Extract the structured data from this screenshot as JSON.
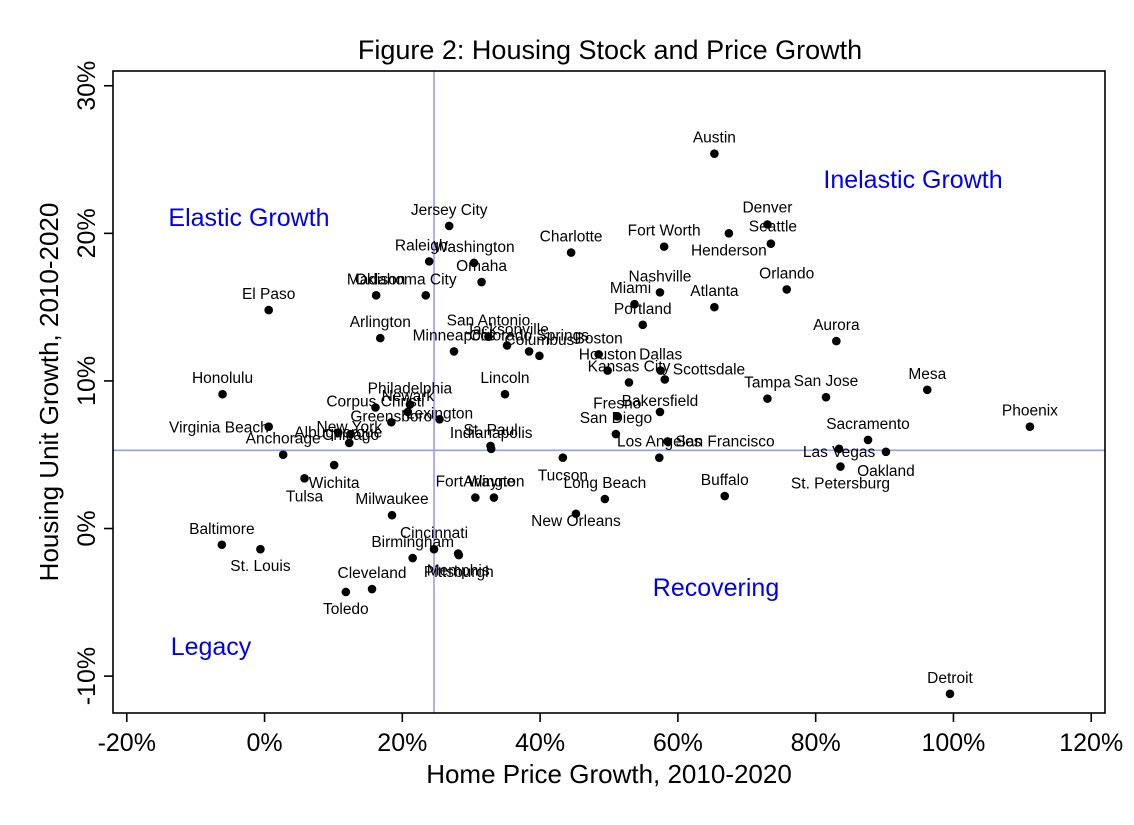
{
  "chart_data": {
    "type": "scatter",
    "title": "Figure 2: Housing Stock and Price Growth",
    "xlabel": "Home Price Growth, 2010-2020",
    "ylabel": "Housing Unit Growth, 2010-2020",
    "xlim": [
      -22,
      122
    ],
    "ylim": [
      -12.5,
      31
    ],
    "x_ticks": [
      -20,
      0,
      20,
      40,
      60,
      80,
      100,
      120
    ],
    "x_tick_labels": [
      "-20%",
      "0%",
      "20%",
      "40%",
      "60%",
      "80%",
      "100%",
      "120%"
    ],
    "y_ticks": [
      -10,
      0,
      10,
      20,
      30
    ],
    "y_tick_labels": [
      "-10%",
      "0%",
      "10%",
      "20%",
      "30%"
    ],
    "reference_lines": {
      "x": 24.6,
      "y": 5.3,
      "color": "#9999ff"
    },
    "quadrant_labels": [
      "Elastic Growth",
      "Inelastic Growth",
      "Legacy",
      "Recovering"
    ],
    "colors": {
      "point": "#000000",
      "quadrant_label": "#0000ee",
      "reference": "#9999ff"
    },
    "points": [
      {
        "name": "Austin",
        "x": 65.3,
        "y": 25.4
      },
      {
        "name": "Denver",
        "x": 73.0,
        "y": 20.6
      },
      {
        "name": "Seattle",
        "x": 73.5,
        "y": 19.3
      },
      {
        "name": "Henderson",
        "x": 67.4,
        "y": 20.0
      },
      {
        "name": "Fort Worth",
        "x": 58.0,
        "y": 19.1
      },
      {
        "name": "Charlotte",
        "x": 44.5,
        "y": 18.7
      },
      {
        "name": "Jersey City",
        "x": 26.8,
        "y": 20.5
      },
      {
        "name": "Washington",
        "x": 30.4,
        "y": 18.0
      },
      {
        "name": "Raleigh",
        "x": 23.9,
        "y": 18.1
      },
      {
        "name": "Omaha",
        "x": 31.5,
        "y": 16.7
      },
      {
        "name": "Oklahoma City",
        "x": 23.4,
        "y": 15.8
      },
      {
        "name": "El Paso",
        "x": 0.6,
        "y": 14.8
      },
      {
        "name": "Orlando",
        "x": 75.8,
        "y": 16.2
      },
      {
        "name": "Nashville",
        "x": 57.4,
        "y": 16.0
      },
      {
        "name": "Miami",
        "x": 53.7,
        "y": 15.2
      },
      {
        "name": "Atlanta",
        "x": 65.3,
        "y": 15.0
      },
      {
        "name": "Portland",
        "x": 54.9,
        "y": 13.8
      },
      {
        "name": "Aurora",
        "x": 83.0,
        "y": 12.7
      },
      {
        "name": "Madison",
        "x": 16.2,
        "y": 15.8
      },
      {
        "name": "Arlington",
        "x": 16.8,
        "y": 12.9
      },
      {
        "name": "San Antonio",
        "x": 32.5,
        "y": 13.0
      },
      {
        "name": "Jacksonville",
        "x": 35.2,
        "y": 12.4
      },
      {
        "name": "Colorado Springs",
        "x": 38.4,
        "y": 12.0
      },
      {
        "name": "Columbus",
        "x": 39.9,
        "y": 11.7
      },
      {
        "name": "Minneapolis",
        "x": 27.5,
        "y": 12.0
      },
      {
        "name": "Boston",
        "x": 48.5,
        "y": 11.8
      },
      {
        "name": "Dallas",
        "x": 57.5,
        "y": 10.7
      },
      {
        "name": "Lincoln",
        "x": 34.9,
        "y": 9.1
      },
      {
        "name": "Houston",
        "x": 49.8,
        "y": 10.7
      },
      {
        "name": "Kansas City",
        "x": 52.9,
        "y": 9.9
      },
      {
        "name": "Scottsdale",
        "x": 58.1,
        "y": 10.1
      },
      {
        "name": "Honolulu",
        "x": -6.1,
        "y": 9.1
      },
      {
        "name": "Tampa",
        "x": 73.0,
        "y": 8.8
      },
      {
        "name": "San Jose",
        "x": 81.5,
        "y": 8.9
      },
      {
        "name": "Mesa",
        "x": 96.2,
        "y": 9.4
      },
      {
        "name": "Phoenix",
        "x": 111.1,
        "y": 6.9
      },
      {
        "name": "Philadelphia",
        "x": 21.1,
        "y": 8.4
      },
      {
        "name": "Newark",
        "x": 20.8,
        "y": 7.9
      },
      {
        "name": "Corpus Christi",
        "x": 16.1,
        "y": 8.2
      },
      {
        "name": "Lexington",
        "x": 25.4,
        "y": 7.4
      },
      {
        "name": "Bakersfield",
        "x": 57.4,
        "y": 7.9
      },
      {
        "name": "Fresno",
        "x": 51.2,
        "y": 7.6
      },
      {
        "name": "San Francisco",
        "x": 58.5,
        "y": 5.9
      },
      {
        "name": "San Diego",
        "x": 51.0,
        "y": 6.4
      },
      {
        "name": "Greensboro",
        "x": 18.4,
        "y": 7.2
      },
      {
        "name": "Virginia Beach",
        "x": 0.6,
        "y": 6.9
      },
      {
        "name": "Albuquerque",
        "x": 10.7,
        "y": 6.5
      },
      {
        "name": "Chicago",
        "x": 12.5,
        "y": 6.4
      },
      {
        "name": "New York",
        "x": 12.3,
        "y": 5.8
      },
      {
        "name": "St. Paul",
        "x": 32.8,
        "y": 5.6
      },
      {
        "name": "Indianapolis",
        "x": 32.9,
        "y": 5.4
      },
      {
        "name": "Los Angeles",
        "x": 57.3,
        "y": 4.8
      },
      {
        "name": "Sacramento",
        "x": 87.6,
        "y": 6.0
      },
      {
        "name": "Las Vegas",
        "x": 83.4,
        "y": 5.4
      },
      {
        "name": "Oakland",
        "x": 90.2,
        "y": 5.2
      },
      {
        "name": "St. Petersburg",
        "x": 83.6,
        "y": 4.2
      },
      {
        "name": "Anchorage",
        "x": 2.7,
        "y": 5.0
      },
      {
        "name": "Tucson",
        "x": 43.3,
        "y": 4.8
      },
      {
        "name": "Wichita",
        "x": 10.1,
        "y": 4.3
      },
      {
        "name": "Tulsa",
        "x": 5.8,
        "y": 3.4
      },
      {
        "name": "Fort Wayne",
        "x": 30.6,
        "y": 2.1
      },
      {
        "name": "Long Beach",
        "x": 49.4,
        "y": 2.0
      },
      {
        "name": "Arlington",
        "x": 33.3,
        "y": 2.1
      },
      {
        "name": "Buffalo",
        "x": 66.8,
        "y": 2.2
      },
      {
        "name": "Milwaukee",
        "x": 18.5,
        "y": 0.9
      },
      {
        "name": "New Orleans",
        "x": 45.2,
        "y": 1.0
      },
      {
        "name": "Pittsburgh",
        "x": 28.2,
        "y": -1.8
      },
      {
        "name": "Baltimore",
        "x": -6.2,
        "y": -1.1
      },
      {
        "name": "St. Louis",
        "x": -0.6,
        "y": -1.4
      },
      {
        "name": "Birmingham",
        "x": 21.5,
        "y": -2.0
      },
      {
        "name": "Cincinnati",
        "x": 24.6,
        "y": -1.4
      },
      {
        "name": "Memphis",
        "x": 28.1,
        "y": -1.7
      },
      {
        "name": "Cleveland",
        "x": 15.6,
        "y": -4.1
      },
      {
        "name": "Toledo",
        "x": 11.8,
        "y": -4.3
      },
      {
        "name": "Detroit",
        "x": 99.5,
        "y": -11.2
      }
    ]
  }
}
